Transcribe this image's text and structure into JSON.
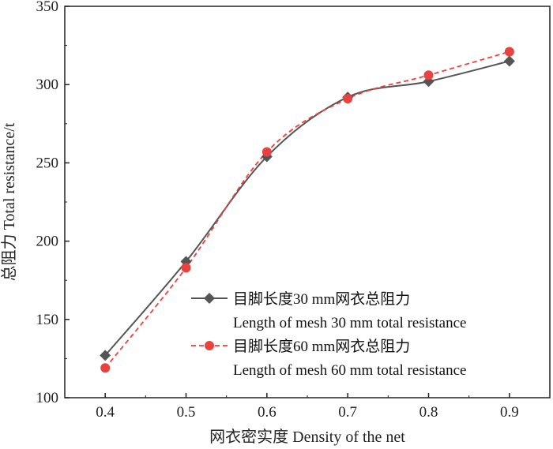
{
  "chart_data": {
    "type": "line",
    "title": "",
    "xlabel": "网衣密实度 Density of the net",
    "ylabel": "总阻力 Total resistance/t",
    "x": [
      0.4,
      0.5,
      0.6,
      0.7,
      0.8,
      0.9
    ],
    "x_tick_labels": [
      "0.4",
      "0.5",
      "0.6",
      "0.7",
      "0.8",
      "0.9"
    ],
    "y_tick_labels": [
      "100",
      "150",
      "200",
      "250",
      "300",
      "350"
    ],
    "y_ticks": [
      100,
      150,
      200,
      250,
      300,
      350
    ],
    "xlim": [
      0.35,
      0.95
    ],
    "ylim": [
      100,
      350
    ],
    "grid": false,
    "legend_position": "bottom-right",
    "series": [
      {
        "name": "目脚长度30 mm网衣总阻力",
        "name_en": "Length of mesh 30 mm total resistance",
        "values": [
          127,
          187,
          254,
          292,
          302,
          315
        ],
        "color": "#555555",
        "marker": "diamond",
        "line_style": "solid"
      },
      {
        "name": "目脚长度60 mm网衣总阻力",
        "name_en": "Length of mesh 60 mm total resistance",
        "values": [
          119,
          183,
          257,
          291,
          306,
          321
        ],
        "color": "#e8433f",
        "marker": "circle",
        "line_style": "dashed"
      }
    ]
  }
}
